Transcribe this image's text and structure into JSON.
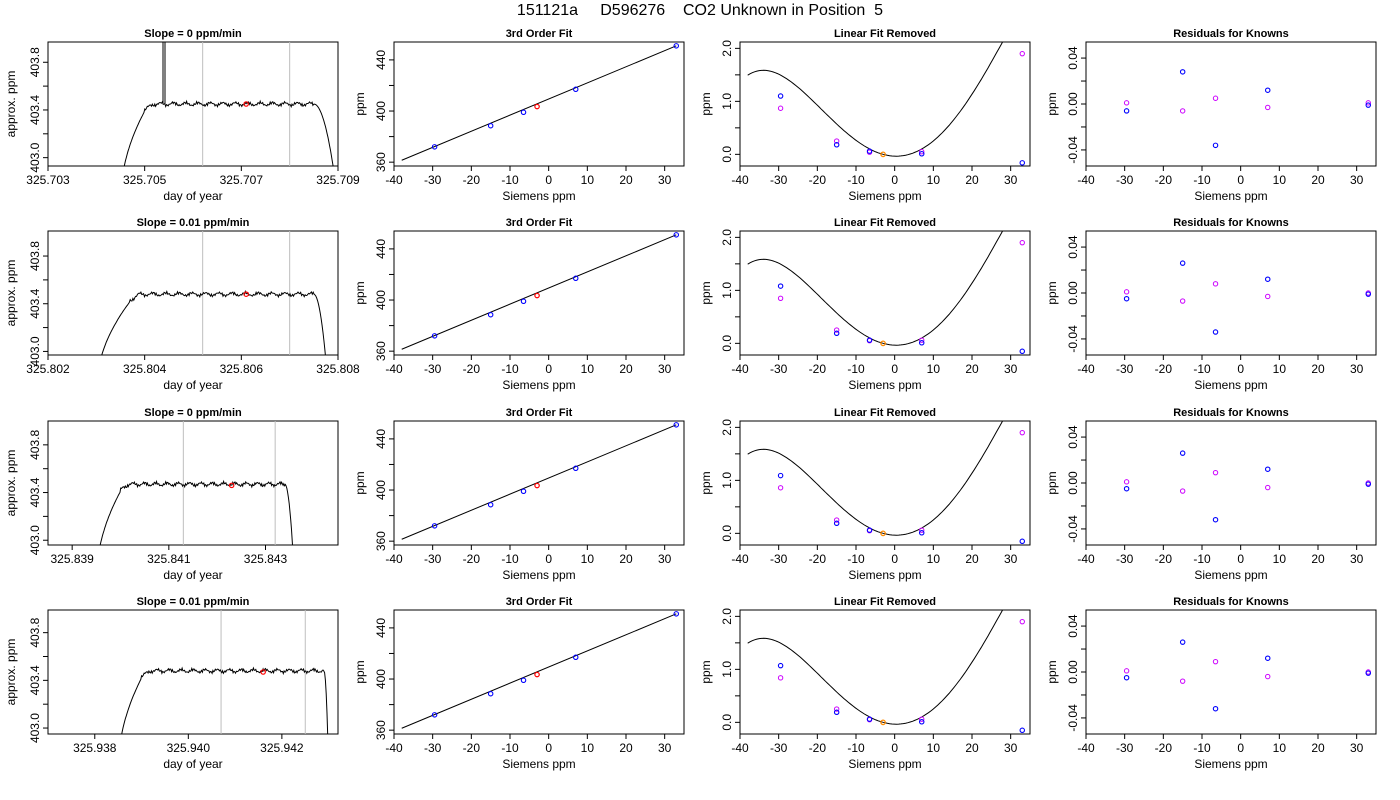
{
  "page_title": "151121a     D596276    CO2 Unknown in Position  5",
  "colors": {
    "trace": "#000000",
    "marker_red": "#ff0000",
    "marker_blue": "#0000ff",
    "marker_magenta": "#cc00ff",
    "marker_orange": "#ff8c00",
    "vline": "#bebebe"
  },
  "chart_data": [
    {
      "type": "line",
      "row": 0,
      "col": 0,
      "title": "Slope =  0  ppm/min",
      "xlabel": "day of year",
      "ylabel": "approx. ppm",
      "xlim": [
        325.703,
        325.709
      ],
      "ylim": [
        402.93,
        403.97
      ],
      "x_ticks": [
        325.703,
        325.705,
        325.707,
        325.709
      ],
      "x_tick_labels": [
        "325.703",
        "325.705",
        "325.707",
        "325.709"
      ],
      "y_ticks": [
        403.0,
        403.4,
        403.8
      ],
      "y_tick_labels": [
        "403.0",
        "403.4",
        "403.8"
      ],
      "y_minor_ticks": [
        403.2,
        403.6
      ],
      "vlines": [
        325.7062,
        325.708
      ],
      "marker": {
        "x": 325.7071,
        "y": 403.45
      },
      "trace": {
        "x_start": 325.7045,
        "rise_end": 325.705,
        "fall_start": 325.7085,
        "x_end": 325.709,
        "level": 403.45,
        "noise": 0.012,
        "spike_x": 325.7054,
        "spike_y": 404.6
      }
    },
    {
      "type": "scatter",
      "row": 0,
      "col": 1,
      "title": "3rd Order Fit",
      "xlabel": "Siemens ppm",
      "ylabel": "ppm",
      "xlim": [
        -40,
        35
      ],
      "ylim": [
        357,
        454
      ],
      "x_ticks": [
        -40,
        -30,
        -20,
        -10,
        0,
        10,
        20,
        30
      ],
      "y_ticks": [
        360,
        400,
        440
      ],
      "y_minor_ticks": [
        380,
        420
      ],
      "line": {
        "x": [
          -38,
          33
        ],
        "y": [
          361.5,
          451
        ]
      },
      "points_blue": [
        [
          -29.5,
          372
        ],
        [
          -15,
          388.5
        ],
        [
          -6.5,
          399
        ],
        [
          7,
          417
        ],
        [
          33,
          451
        ]
      ],
      "point_red": [
        -3,
        403.5
      ]
    },
    {
      "type": "scatter",
      "row": 0,
      "col": 2,
      "title": "Linear Fit Removed",
      "xlabel": "Siemens ppm",
      "ylabel": "ppm",
      "xlim": [
        -40,
        35
      ],
      "ylim": [
        -0.22,
        2.12
      ],
      "x_ticks": [
        -40,
        -30,
        -20,
        -10,
        0,
        10,
        20,
        30
      ],
      "y_ticks": [
        0.0,
        1.0,
        2.0
      ],
      "y_tick_labels": [
        "0.0",
        "1.0",
        "2.0"
      ],
      "y_minor_ticks": [
        0.5,
        1.5
      ],
      "curve": {
        "x0": -3,
        "a": -0.02,
        "b": 0.0028,
        "c": 3e-05,
        "d": -9e-07,
        "x_from": -38,
        "x_to": 33
      },
      "points_blue": [
        [
          -29.5,
          1.1
        ],
        [
          -15,
          0.18
        ],
        [
          -6.5,
          0.06
        ],
        [
          7,
          0.01
        ],
        [
          33,
          -0.16
        ]
      ],
      "points_magenta": [
        [
          -29.5,
          0.87
        ],
        [
          -15,
          0.25
        ],
        [
          -6.5,
          0.04
        ],
        [
          7,
          0.05
        ],
        [
          33,
          1.9
        ]
      ],
      "point_orange": [
        -3,
        0.0
      ]
    },
    {
      "type": "scatter",
      "row": 0,
      "col": 3,
      "title": "Residuals for Knowns",
      "xlabel": "Siemens ppm",
      "ylabel": "ppm",
      "xlim": [
        -40,
        35
      ],
      "ylim": [
        -0.054,
        0.054
      ],
      "x_ticks": [
        -40,
        -30,
        -20,
        -10,
        0,
        10,
        20,
        30
      ],
      "y_ticks": [
        -0.04,
        0.0,
        0.04
      ],
      "y_tick_labels": [
        "-0.04",
        "0.00",
        "0.04"
      ],
      "y_minor_ticks": [
        -0.02,
        0.02
      ],
      "points_blue": [
        [
          -29.5,
          -0.006
        ],
        [
          -15,
          0.028
        ],
        [
          -6.5,
          -0.036
        ],
        [
          7,
          0.012
        ],
        [
          33,
          -0.001
        ]
      ],
      "points_magenta": [
        [
          -29.5,
          0.001
        ],
        [
          -15,
          -0.006
        ],
        [
          -6.5,
          0.005
        ],
        [
          7,
          -0.003
        ],
        [
          33,
          0.001
        ]
      ]
    },
    {
      "type": "line",
      "row": 1,
      "col": 0,
      "title": "Slope =  0.01  ppm/min",
      "xlabel": "day of year",
      "ylabel": "approx. ppm",
      "xlim": [
        325.802,
        325.808
      ],
      "ylim": [
        402.97,
        404.01
      ],
      "x_ticks": [
        325.802,
        325.804,
        325.806,
        325.808
      ],
      "x_tick_labels": [
        "325.802",
        "325.804",
        "325.806",
        "325.808"
      ],
      "y_ticks": [
        403.0,
        403.4,
        403.8
      ],
      "y_tick_labels": [
        "403.0",
        "403.4",
        "403.8"
      ],
      "y_minor_ticks": [
        403.2,
        403.6
      ],
      "vlines": [
        325.8052,
        325.807
      ],
      "marker": {
        "x": 325.8061,
        "y": 403.48
      },
      "trace": {
        "x_start": 325.803,
        "rise_end": 325.8037,
        "fall_start": 325.8075,
        "x_end": 325.8078,
        "level": 403.48,
        "noise": 0.012
      }
    },
    {
      "type": "scatter",
      "row": 1,
      "col": 1,
      "title": "3rd Order Fit",
      "xlabel": "Siemens ppm",
      "ylabel": "ppm",
      "xlim": [
        -40,
        35
      ],
      "ylim": [
        357,
        454
      ],
      "x_ticks": [
        -40,
        -30,
        -20,
        -10,
        0,
        10,
        20,
        30
      ],
      "y_ticks": [
        360,
        400,
        440
      ],
      "y_minor_ticks": [
        380,
        420
      ],
      "line": {
        "x": [
          -38,
          33
        ],
        "y": [
          361.5,
          451
        ]
      },
      "points_blue": [
        [
          -29.5,
          372
        ],
        [
          -15,
          388.5
        ],
        [
          -6.5,
          399
        ],
        [
          7,
          417
        ],
        [
          33,
          451
        ]
      ],
      "point_red": [
        -3,
        403.5
      ]
    },
    {
      "type": "scatter",
      "row": 1,
      "col": 2,
      "title": "Linear Fit Removed",
      "xlabel": "Siemens ppm",
      "ylabel": "ppm",
      "xlim": [
        -40,
        35
      ],
      "ylim": [
        -0.22,
        2.12
      ],
      "x_ticks": [
        -40,
        -30,
        -20,
        -10,
        0,
        10,
        20,
        30
      ],
      "y_ticks": [
        0.0,
        1.0,
        2.0
      ],
      "y_tick_labels": [
        "0.0",
        "1.0",
        "2.0"
      ],
      "y_minor_ticks": [
        0.5,
        1.5
      ],
      "curve": {
        "x0": -3,
        "a": -0.02,
        "b": 0.0028,
        "c": 3e-05,
        "d": -9e-07,
        "x_from": -38,
        "x_to": 33
      },
      "points_blue": [
        [
          -29.5,
          1.08
        ],
        [
          -15,
          0.19
        ],
        [
          -6.5,
          0.06
        ],
        [
          7,
          0.01
        ],
        [
          33,
          -0.15
        ]
      ],
      "points_magenta": [
        [
          -29.5,
          0.85
        ],
        [
          -15,
          0.25
        ],
        [
          -6.5,
          0.05
        ],
        [
          7,
          0.06
        ],
        [
          33,
          1.9
        ]
      ],
      "point_orange": [
        -3,
        0.0
      ]
    },
    {
      "type": "scatter",
      "row": 1,
      "col": 3,
      "title": "Residuals for Knowns",
      "xlabel": "Siemens ppm",
      "ylabel": "ppm",
      "xlim": [
        -40,
        35
      ],
      "ylim": [
        -0.054,
        0.054
      ],
      "x_ticks": [
        -40,
        -30,
        -20,
        -10,
        0,
        10,
        20,
        30
      ],
      "y_ticks": [
        -0.04,
        0.0,
        0.04
      ],
      "y_tick_labels": [
        "-0.04",
        "0.00",
        "0.04"
      ],
      "y_minor_ticks": [
        -0.02,
        0.02
      ],
      "points_blue": [
        [
          -29.5,
          -0.005
        ],
        [
          -15,
          0.026
        ],
        [
          -6.5,
          -0.034
        ],
        [
          7,
          0.012
        ],
        [
          33,
          -0.001
        ]
      ],
      "points_magenta": [
        [
          -29.5,
          0.001
        ],
        [
          -15,
          -0.007
        ],
        [
          -6.5,
          0.008
        ],
        [
          7,
          -0.003
        ],
        [
          33,
          0.0
        ]
      ]
    },
    {
      "type": "line",
      "row": 2,
      "col": 0,
      "title": "Slope =  0  ppm/min",
      "xlabel": "day of year",
      "ylabel": "approx. ppm",
      "xlim": [
        325.8385,
        325.8445
      ],
      "ylim": [
        402.96,
        404.0
      ],
      "x_ticks": [
        325.839,
        325.841,
        325.843
      ],
      "x_tick_labels": [
        "325.839",
        "325.841",
        "325.843"
      ],
      "y_ticks": [
        403.0,
        403.4,
        403.8
      ],
      "y_tick_labels": [
        "403.0",
        "403.4",
        "403.8"
      ],
      "y_minor_ticks": [
        403.2,
        403.6
      ],
      "vlines": [
        325.8413,
        325.8432
      ],
      "marker": {
        "x": 325.8423,
        "y": 403.46
      },
      "trace": {
        "x_start": 325.8395,
        "rise_end": 325.84,
        "fall_start": 325.8434,
        "x_end": 325.8436,
        "level": 403.47,
        "noise": 0.012
      }
    },
    {
      "type": "scatter",
      "row": 2,
      "col": 1,
      "title": "3rd Order Fit",
      "xlabel": "Siemens ppm",
      "ylabel": "ppm",
      "xlim": [
        -40,
        35
      ],
      "ylim": [
        357,
        454
      ],
      "x_ticks": [
        -40,
        -30,
        -20,
        -10,
        0,
        10,
        20,
        30
      ],
      "y_ticks": [
        360,
        400,
        440
      ],
      "y_minor_ticks": [
        380,
        420
      ],
      "line": {
        "x": [
          -38,
          33
        ],
        "y": [
          361.5,
          451
        ]
      },
      "points_blue": [
        [
          -29.5,
          372
        ],
        [
          -15,
          388.5
        ],
        [
          -6.5,
          399
        ],
        [
          7,
          417
        ],
        [
          33,
          451
        ]
      ],
      "point_red": [
        -3,
        403.5
      ]
    },
    {
      "type": "scatter",
      "row": 2,
      "col": 2,
      "title": "Linear Fit Removed",
      "xlabel": "Siemens ppm",
      "ylabel": "ppm",
      "xlim": [
        -40,
        35
      ],
      "ylim": [
        -0.22,
        2.12
      ],
      "x_ticks": [
        -40,
        -30,
        -20,
        -10,
        0,
        10,
        20,
        30
      ],
      "y_ticks": [
        0.0,
        1.0,
        2.0
      ],
      "y_tick_labels": [
        "0.0",
        "1.0",
        "2.0"
      ],
      "y_minor_ticks": [
        0.5,
        1.5
      ],
      "curve": {
        "x0": -3,
        "a": -0.02,
        "b": 0.0028,
        "c": 3e-05,
        "d": -9e-07,
        "x_from": -38,
        "x_to": 33
      },
      "points_blue": [
        [
          -29.5,
          1.09
        ],
        [
          -15,
          0.19
        ],
        [
          -6.5,
          0.06
        ],
        [
          7,
          0.01
        ],
        [
          33,
          -0.15
        ]
      ],
      "points_magenta": [
        [
          -29.5,
          0.86
        ],
        [
          -15,
          0.25
        ],
        [
          -6.5,
          0.05
        ],
        [
          7,
          0.06
        ],
        [
          33,
          1.9
        ]
      ],
      "point_orange": [
        -3,
        0.0
      ]
    },
    {
      "type": "scatter",
      "row": 2,
      "col": 3,
      "title": "Residuals for Knowns",
      "xlabel": "Siemens ppm",
      "ylabel": "ppm",
      "xlim": [
        -40,
        35
      ],
      "ylim": [
        -0.054,
        0.054
      ],
      "x_ticks": [
        -40,
        -30,
        -20,
        -10,
        0,
        10,
        20,
        30
      ],
      "y_ticks": [
        -0.04,
        0.0,
        0.04
      ],
      "y_tick_labels": [
        "-0.04",
        "0.00",
        "0.04"
      ],
      "y_minor_ticks": [
        -0.02,
        0.02
      ],
      "points_blue": [
        [
          -29.5,
          -0.005
        ],
        [
          -15,
          0.026
        ],
        [
          -6.5,
          -0.032
        ],
        [
          7,
          0.012
        ],
        [
          33,
          -0.001
        ]
      ],
      "points_magenta": [
        [
          -29.5,
          0.001
        ],
        [
          -15,
          -0.007
        ],
        [
          -6.5,
          0.009
        ],
        [
          7,
          -0.004
        ],
        [
          33,
          0.0
        ]
      ]
    },
    {
      "type": "line",
      "row": 3,
      "col": 0,
      "title": "Slope =  0.01  ppm/min",
      "xlabel": "day of year",
      "ylabel": "approx. ppm",
      "xlim": [
        325.937,
        325.9432
      ],
      "ylim": [
        402.95,
        403.99
      ],
      "x_ticks": [
        325.938,
        325.94,
        325.942
      ],
      "x_tick_labels": [
        "325.938",
        "325.940",
        "325.942"
      ],
      "y_ticks": [
        403.0,
        403.4,
        403.8
      ],
      "y_tick_labels": [
        "403.0",
        "403.4",
        "403.8"
      ],
      "y_minor_ticks": [
        403.2,
        403.6
      ],
      "vlines": [
        325.9407,
        325.9425
      ],
      "marker": {
        "x": 325.9416,
        "y": 403.47
      },
      "trace": {
        "x_start": 325.9385,
        "rise_end": 325.939,
        "fall_start": 325.9429,
        "x_end": 325.943,
        "level": 403.48,
        "noise": 0.012
      }
    },
    {
      "type": "scatter",
      "row": 3,
      "col": 1,
      "title": "3rd Order Fit",
      "xlabel": "Siemens ppm",
      "ylabel": "ppm",
      "xlim": [
        -40,
        35
      ],
      "ylim": [
        357,
        454
      ],
      "x_ticks": [
        -40,
        -30,
        -20,
        -10,
        0,
        10,
        20,
        30
      ],
      "y_ticks": [
        360,
        400,
        440
      ],
      "y_minor_ticks": [
        380,
        420
      ],
      "line": {
        "x": [
          -38,
          33
        ],
        "y": [
          361.5,
          451
        ]
      },
      "points_blue": [
        [
          -29.5,
          372
        ],
        [
          -15,
          388.5
        ],
        [
          -6.5,
          399
        ],
        [
          7,
          417
        ],
        [
          33,
          451
        ]
      ],
      "point_red": [
        -3,
        403.5
      ]
    },
    {
      "type": "scatter",
      "row": 3,
      "col": 2,
      "title": "Linear Fit Removed",
      "xlabel": "Siemens ppm",
      "ylabel": "ppm",
      "xlim": [
        -40,
        35
      ],
      "ylim": [
        -0.22,
        2.12
      ],
      "x_ticks": [
        -40,
        -30,
        -20,
        -10,
        0,
        10,
        20,
        30
      ],
      "y_ticks": [
        0.0,
        1.0,
        2.0
      ],
      "y_tick_labels": [
        "0.0",
        "1.0",
        "2.0"
      ],
      "y_minor_ticks": [
        0.5,
        1.5
      ],
      "curve": {
        "x0": -3,
        "a": -0.02,
        "b": 0.0028,
        "c": 3e-05,
        "d": -9e-07,
        "x_from": -38,
        "x_to": 33
      },
      "points_blue": [
        [
          -29.5,
          1.07
        ],
        [
          -15,
          0.19
        ],
        [
          -6.5,
          0.06
        ],
        [
          7,
          0.01
        ],
        [
          33,
          -0.15
        ]
      ],
      "points_magenta": [
        [
          -29.5,
          0.84
        ],
        [
          -15,
          0.25
        ],
        [
          -6.5,
          0.05
        ],
        [
          7,
          0.06
        ],
        [
          33,
          1.9
        ]
      ],
      "point_orange": [
        -3,
        0.0
      ]
    },
    {
      "type": "scatter",
      "row": 3,
      "col": 3,
      "title": "Residuals for Knowns",
      "xlabel": "Siemens ppm",
      "ylabel": "ppm",
      "xlim": [
        -40,
        35
      ],
      "ylim": [
        -0.054,
        0.054
      ],
      "x_ticks": [
        -40,
        -30,
        -20,
        -10,
        0,
        10,
        20,
        30
      ],
      "y_ticks": [
        -0.04,
        0.0,
        0.04
      ],
      "y_tick_labels": [
        "-0.04",
        "0.00",
        "0.04"
      ],
      "y_minor_ticks": [
        -0.02,
        0.02
      ],
      "points_blue": [
        [
          -29.5,
          -0.005
        ],
        [
          -15,
          0.026
        ],
        [
          -6.5,
          -0.032
        ],
        [
          7,
          0.012
        ],
        [
          33,
          -0.001
        ]
      ],
      "points_magenta": [
        [
          -29.5,
          0.001
        ],
        [
          -15,
          -0.008
        ],
        [
          -6.5,
          0.009
        ],
        [
          7,
          -0.004
        ],
        [
          33,
          0.0
        ]
      ]
    }
  ]
}
